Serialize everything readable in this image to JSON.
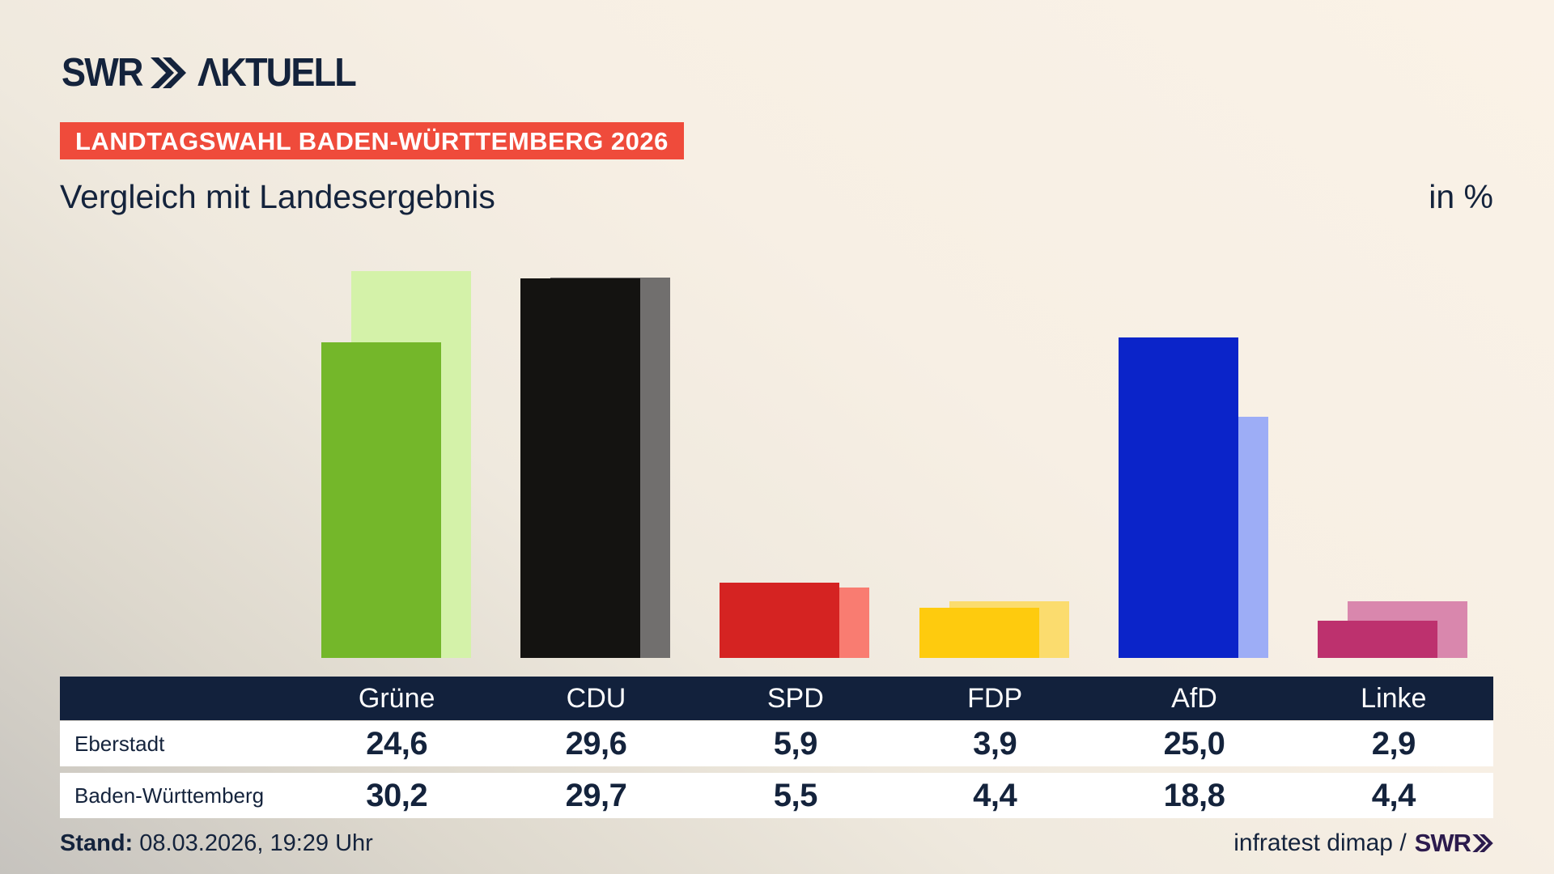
{
  "header": {
    "logo": {
      "swr": "SWR",
      "aktuell": "ΛKTUELL"
    },
    "banner": "LANDTAGSWAHL BADEN-WÜRTTEMBERG 2026",
    "title": "Vergleich mit Landesergebnis",
    "unit_label": "in %"
  },
  "chart_data": {
    "type": "bar",
    "categories": [
      "Grüne",
      "CDU",
      "SPD",
      "FDP",
      "AfD",
      "Linke"
    ],
    "series": [
      {
        "name": "Eberstadt",
        "role": "foreground",
        "values": [
          24.6,
          29.6,
          5.9,
          3.9,
          25.0,
          2.9
        ]
      },
      {
        "name": "Baden-Württemberg",
        "role": "background",
        "values": [
          30.2,
          29.7,
          5.5,
          4.4,
          18.8,
          4.4
        ]
      }
    ],
    "title": "Vergleich mit Landesergebnis",
    "xlabel": "",
    "ylabel": "in %",
    "ylim": [
      0,
      31
    ],
    "grid": false,
    "legend_position": "table-below-chart",
    "colors": {
      "foreground": [
        "#74b72a",
        "#141311",
        "#d52322",
        "#fecb0e",
        "#0b24c9",
        "#bd316e"
      ],
      "background": [
        "#d4f2a9",
        "#716f6e",
        "#f97c71",
        "#fbdc6e",
        "#9dadf6",
        "#d987ad"
      ]
    }
  },
  "table": {
    "header": [
      "Grüne",
      "CDU",
      "SPD",
      "FDP",
      "AfD",
      "Linke"
    ],
    "rows": [
      {
        "label": "Eberstadt",
        "values": [
          "24,6",
          "29,6",
          "5,9",
          "3,9",
          "25,0",
          "2,9"
        ]
      },
      {
        "label": "Baden-Württemberg",
        "values": [
          "30,2",
          "29,7",
          "5,5",
          "4,4",
          "18,8",
          "4,4"
        ]
      }
    ]
  },
  "footer": {
    "stand_label": "Stand:",
    "stand_value": "08.03.2026, 19:29 Uhr",
    "source": "infratest dimap /",
    "source_logo": "SWR"
  },
  "colors": {
    "navy": "#14233c",
    "table_header_navy": "#12213c",
    "banner_red": "#ef4b3b",
    "background_beige": "#f7efe4",
    "background_shadow": "#c6c3be",
    "footer_logo_purple": "#2c1b4d",
    "row_white": "#ffffff"
  }
}
